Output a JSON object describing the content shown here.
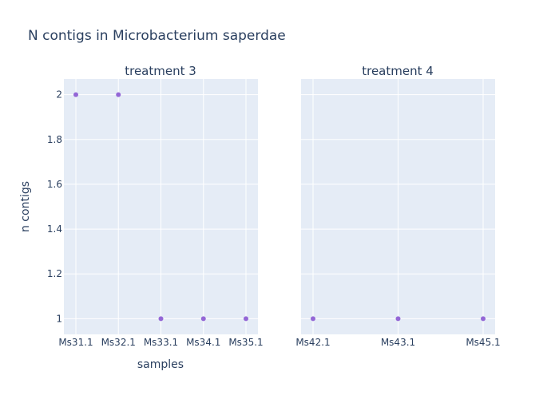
{
  "chart_data": {
    "type": "scatter",
    "title": "N contigs in Microbacterium saperdae",
    "xlabel": "samples",
    "ylabel": "n contigs",
    "ylim": [
      0.93,
      2.07
    ],
    "yticks": [
      1,
      1.2,
      1.4,
      1.6,
      1.8,
      2
    ],
    "ytick_labels": [
      "1",
      "1.2",
      "1.4",
      "1.6",
      "1.8",
      "2"
    ],
    "marker_color": "#9467d6",
    "panel_color": "#e5ecf6",
    "text_color": "#2a3f5f",
    "grid": true,
    "legend": "none",
    "panels": [
      {
        "title": "treatment 3",
        "x": [
          "Ms31.1",
          "Ms32.1",
          "Ms33.1",
          "Ms34.1",
          "Ms35.1"
        ],
        "y": [
          2,
          2,
          1,
          1,
          1
        ]
      },
      {
        "title": "treatment 4",
        "x": [
          "Ms42.1",
          "Ms43.1",
          "Ms45.1"
        ],
        "y": [
          1,
          1,
          1
        ]
      }
    ]
  }
}
